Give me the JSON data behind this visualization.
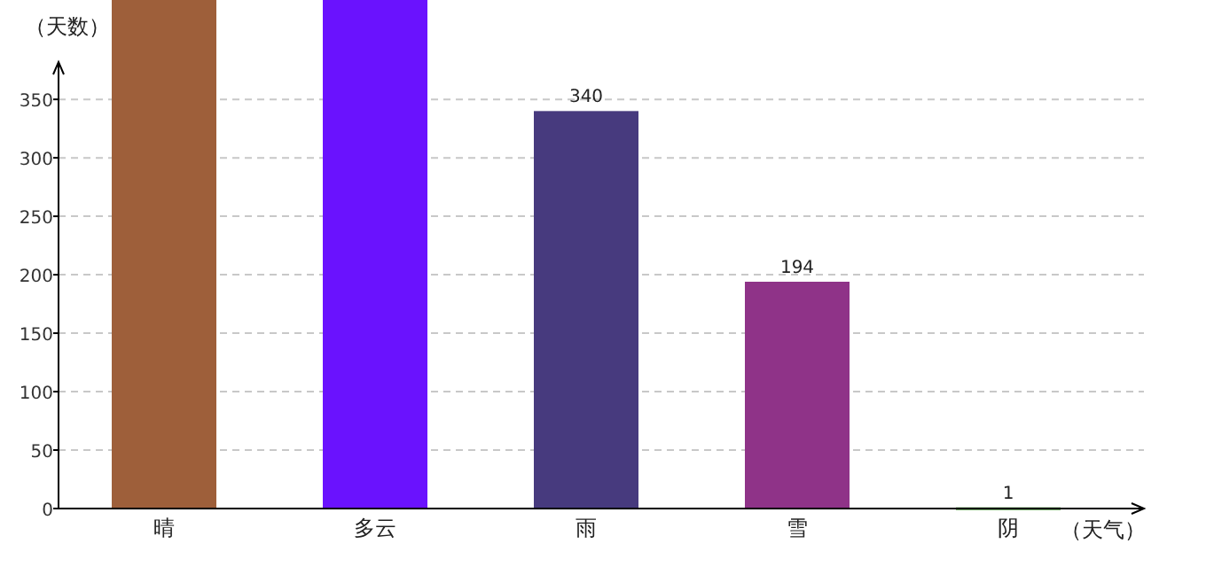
{
  "chart_data": {
    "type": "bar",
    "xlabel": "（天气）",
    "ylabel": "（天数）",
    "categories": [
      "晴",
      "多云",
      "雨",
      "雪",
      "阴"
    ],
    "values": [
      435,
      435,
      340,
      194,
      1
    ],
    "colors": [
      "#9e5f3a",
      "#6a12fe",
      "#473a7e",
      "#8f3388",
      "#3a8a2a"
    ],
    "value_labels": [
      null,
      null,
      "340",
      "194",
      "1"
    ],
    "ylim": [
      0,
      435
    ],
    "yticks": [
      0,
      50,
      100,
      150,
      200,
      250,
      300,
      350
    ],
    "grid": "y"
  }
}
